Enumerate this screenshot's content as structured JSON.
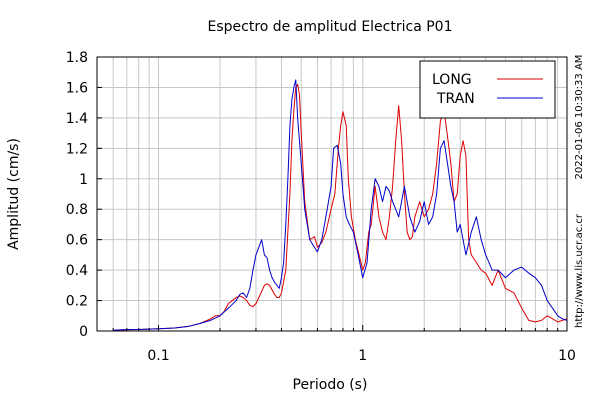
{
  "chart_data": {
    "type": "line",
    "title": "Espectro de amplitud Electrica P01",
    "xlabel": "Periodo (s)",
    "ylabel": "Amplitud (cm/s)",
    "x_scale": "log",
    "xlim": [
      0.05,
      10
    ],
    "ylim": [
      0,
      1.8
    ],
    "x_ticks": [
      0.1,
      1,
      10
    ],
    "x_tick_labels": [
      "0.1",
      "1",
      "10"
    ],
    "y_ticks": [
      0,
      0.2,
      0.4,
      0.6,
      0.8,
      1,
      1.2,
      1.4,
      1.6,
      1.8
    ],
    "y_tick_labels": [
      "0",
      "0.2",
      "0.4",
      "0.6",
      "0.8",
      "1",
      "1.2",
      "1.4",
      "1.6",
      "1.8"
    ],
    "grid": true,
    "legend_position": "top-right",
    "series": [
      {
        "name": "LONG",
        "color": "#dd0000",
        "x": [
          0.06,
          0.07,
          0.08,
          0.1,
          0.12,
          0.14,
          0.16,
          0.18,
          0.19,
          0.2,
          0.21,
          0.22,
          0.23,
          0.24,
          0.25,
          0.26,
          0.27,
          0.28,
          0.29,
          0.3,
          0.31,
          0.32,
          0.33,
          0.34,
          0.35,
          0.36,
          0.37,
          0.38,
          0.39,
          0.4,
          0.42,
          0.44,
          0.45,
          0.46,
          0.47,
          0.48,
          0.49,
          0.5,
          0.52,
          0.55,
          0.58,
          0.6,
          0.63,
          0.66,
          0.7,
          0.73,
          0.76,
          0.78,
          0.8,
          0.83,
          0.85,
          0.88,
          0.92,
          0.96,
          1.0,
          1.03,
          1.07,
          1.1,
          1.15,
          1.2,
          1.25,
          1.3,
          1.35,
          1.4,
          1.45,
          1.5,
          1.55,
          1.6,
          1.65,
          1.7,
          1.75,
          1.8,
          1.9,
          2.0,
          2.1,
          2.2,
          2.3,
          2.4,
          2.5,
          2.6,
          2.7,
          2.8,
          2.9,
          3.0,
          3.1,
          3.2,
          3.3,
          3.4,
          3.6,
          3.8,
          4.0,
          4.3,
          4.6,
          5.0,
          5.5,
          6.0,
          6.5,
          7.0,
          7.5,
          8.0,
          8.5,
          9.0,
          9.5,
          10.0
        ],
        "y": [
          0.005,
          0.008,
          0.01,
          0.015,
          0.02,
          0.03,
          0.05,
          0.08,
          0.1,
          0.1,
          0.13,
          0.18,
          0.2,
          0.22,
          0.23,
          0.22,
          0.2,
          0.17,
          0.16,
          0.18,
          0.22,
          0.26,
          0.3,
          0.31,
          0.3,
          0.27,
          0.24,
          0.22,
          0.22,
          0.25,
          0.4,
          0.9,
          1.25,
          1.45,
          1.6,
          1.62,
          1.55,
          1.3,
          0.85,
          0.6,
          0.62,
          0.55,
          0.58,
          0.65,
          0.8,
          0.9,
          1.2,
          1.35,
          1.44,
          1.35,
          1.0,
          0.75,
          0.6,
          0.5,
          0.4,
          0.45,
          0.65,
          0.7,
          0.95,
          0.75,
          0.65,
          0.6,
          0.75,
          0.95,
          1.25,
          1.48,
          1.25,
          0.9,
          0.65,
          0.6,
          0.62,
          0.75,
          0.85,
          0.75,
          0.8,
          0.9,
          1.1,
          1.38,
          1.45,
          1.28,
          1.1,
          0.85,
          0.9,
          1.15,
          1.25,
          1.15,
          0.6,
          0.5,
          0.45,
          0.4,
          0.38,
          0.3,
          0.4,
          0.28,
          0.25,
          0.15,
          0.07,
          0.06,
          0.07,
          0.1,
          0.08,
          0.06,
          0.07,
          0.08
        ]
      },
      {
        "name": "TRAN",
        "color": "#0000cc",
        "x": [
          0.06,
          0.07,
          0.08,
          0.1,
          0.12,
          0.14,
          0.16,
          0.18,
          0.2,
          0.22,
          0.24,
          0.25,
          0.26,
          0.27,
          0.28,
          0.29,
          0.3,
          0.31,
          0.32,
          0.33,
          0.34,
          0.35,
          0.36,
          0.37,
          0.38,
          0.39,
          0.4,
          0.41,
          0.42,
          0.43,
          0.44,
          0.45,
          0.46,
          0.47,
          0.48,
          0.5,
          0.52,
          0.55,
          0.58,
          0.6,
          0.63,
          0.66,
          0.7,
          0.72,
          0.75,
          0.78,
          0.8,
          0.83,
          0.86,
          0.9,
          0.95,
          1.0,
          1.05,
          1.1,
          1.15,
          1.2,
          1.25,
          1.3,
          1.35,
          1.4,
          1.5,
          1.6,
          1.7,
          1.8,
          1.9,
          2.0,
          2.1,
          2.2,
          2.3,
          2.4,
          2.5,
          2.6,
          2.7,
          2.8,
          2.9,
          3.0,
          3.2,
          3.4,
          3.6,
          3.8,
          4.0,
          4.3,
          4.6,
          5.0,
          5.5,
          6.0,
          6.5,
          7.0,
          7.5,
          8.0,
          8.5,
          9.0,
          9.5,
          10.0
        ],
        "y": [
          0.005,
          0.01,
          0.01,
          0.015,
          0.02,
          0.03,
          0.05,
          0.07,
          0.1,
          0.15,
          0.2,
          0.24,
          0.25,
          0.22,
          0.28,
          0.4,
          0.5,
          0.55,
          0.6,
          0.5,
          0.48,
          0.4,
          0.35,
          0.32,
          0.3,
          0.28,
          0.35,
          0.45,
          0.7,
          1.0,
          1.35,
          1.52,
          1.6,
          1.65,
          1.4,
          1.1,
          0.8,
          0.6,
          0.55,
          0.52,
          0.6,
          0.75,
          0.95,
          1.2,
          1.22,
          1.1,
          0.9,
          0.75,
          0.7,
          0.65,
          0.5,
          0.35,
          0.45,
          0.8,
          1.0,
          0.95,
          0.85,
          0.95,
          0.92,
          0.85,
          0.75,
          0.95,
          0.75,
          0.65,
          0.72,
          0.85,
          0.7,
          0.75,
          0.9,
          1.2,
          1.25,
          1.1,
          0.95,
          0.85,
          0.65,
          0.7,
          0.5,
          0.65,
          0.75,
          0.6,
          0.5,
          0.4,
          0.4,
          0.35,
          0.4,
          0.42,
          0.38,
          0.35,
          0.3,
          0.2,
          0.15,
          0.1,
          0.08,
          0.07
        ]
      }
    ],
    "side_note_top": "2022-01-06 10:30:33 AM",
    "side_note_bottom": "http://www.lis.ucr.ac.cr"
  }
}
